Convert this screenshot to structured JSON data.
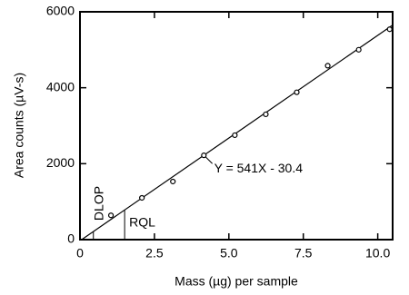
{
  "chart_data": {
    "type": "scatter",
    "x_label": "Mass (µg) per sample",
    "y_label": "Area counts (µV-s)",
    "x": [
      1.04,
      2.08,
      3.12,
      4.16,
      5.2,
      6.24,
      7.28,
      8.32,
      9.36,
      10.4
    ],
    "values": [
      640,
      1100,
      1530,
      2220,
      2750,
      3300,
      3880,
      4580,
      5000,
      5540
    ],
    "color": "#000000",
    "xlim": [
      0,
      10.5
    ],
    "xticks": [
      0,
      2.5,
      {
        "value": 5,
        "label": "5.0"
      },
      7.5,
      {
        "value": 10,
        "label": "10.0"
      }
    ],
    "ylim": [
      0,
      6000
    ],
    "yticks": [
      0,
      2000,
      4000,
      6000
    ],
    "fit_line": {
      "label": "Y = 541X - 30.4",
      "slope": 541,
      "intercept": -30.4
    },
    "annotations": [
      {
        "text": "DLOP",
        "x": 0.45
      },
      {
        "text": "RQL",
        "x": 1.5
      }
    ]
  }
}
